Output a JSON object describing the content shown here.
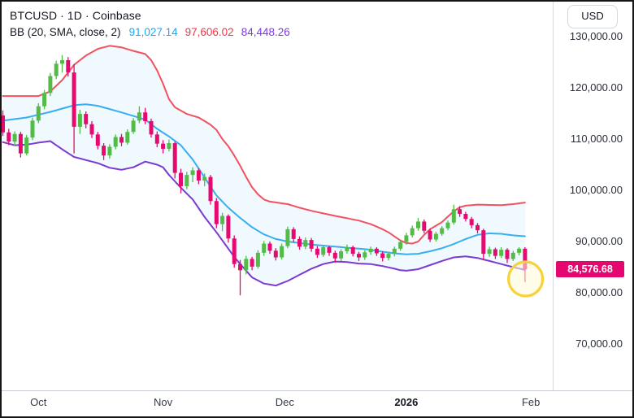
{
  "header": {
    "symbol_line": "BTCUSD · 1D · Coinbase",
    "indicator_label": "BB (20, SMA, close, 2)",
    "bb_basis": "91,027.14",
    "bb_upper": "97,606.02",
    "bb_lower": "84,448.26"
  },
  "axis": {
    "currency_button": "USD",
    "price_tag": "84,576.68"
  },
  "colors": {
    "candle_up": "#53bc47",
    "candle_down": "#e60a70",
    "band_upper": "#f2515f",
    "band_basis": "#38aef2",
    "band_lower": "#7c3ad2",
    "band_fill": "rgba(56,174,242,0.08)",
    "price_tag_bg": "#e5076f",
    "annotation_stroke": "#f6d33c",
    "annotation_fill": "rgba(255,249,216,0.55)",
    "legend_basis": "#1fa7f5",
    "legend_upper": "#f23645",
    "legend_lower": "#8039e0"
  },
  "chart_data": {
    "type": "candlestick",
    "title": "BTCUSD · 1D · Coinbase",
    "indicator": {
      "name": "BB",
      "length": 20,
      "ma_type": "SMA",
      "source": "close",
      "stddev": 2,
      "basis_value": 91027.14,
      "upper_value": 97606.02,
      "lower_value": 84448.26
    },
    "last_price": 84576.68,
    "ylim_k": [
      66,
      132
    ],
    "grid": false,
    "y_axis_ticks": [
      {
        "value_k": 130,
        "label": "130,000.00"
      },
      {
        "value_k": 120,
        "label": "120,000.00"
      },
      {
        "value_k": 110,
        "label": "110,000.00"
      },
      {
        "value_k": 100,
        "label": "100,000.00"
      },
      {
        "value_k": 90,
        "label": "90,000.00"
      },
      {
        "value_k": 80,
        "label": "80,000.00"
      },
      {
        "value_k": 70,
        "label": "70,000.00"
      }
    ],
    "x_axis_ticks": [
      {
        "label": "Oct",
        "index": 6,
        "year": false
      },
      {
        "label": "Nov",
        "index": 27,
        "year": false
      },
      {
        "label": "Dec",
        "index": 47.5,
        "year": false
      },
      {
        "label": "2026",
        "index": 68,
        "year": true
      },
      {
        "label": "Feb",
        "index": 89,
        "year": false
      }
    ],
    "candles_ohlc_k": [
      [
        114.6,
        115.6,
        110.6,
        111.3
      ],
      [
        111.3,
        112.0,
        108.8,
        109.5
      ],
      [
        109.5,
        111.5,
        108.7,
        111.0
      ],
      [
        111.0,
        111.4,
        106.4,
        107.2
      ],
      [
        107.2,
        110.8,
        106.8,
        110.3
      ],
      [
        110.3,
        114.2,
        109.8,
        113.6
      ],
      [
        113.6,
        117.0,
        113.1,
        116.4
      ],
      [
        116.4,
        119.6,
        115.8,
        119.0
      ],
      [
        119.0,
        122.9,
        118.4,
        122.3
      ],
      [
        122.3,
        125.3,
        121.7,
        124.7
      ],
      [
        124.7,
        126.4,
        123.0,
        125.4
      ],
      [
        125.4,
        126.0,
        122.2,
        123.0
      ],
      [
        123.0,
        124.6,
        107.2,
        112.4
      ],
      [
        112.4,
        115.7,
        111.0,
        114.9
      ],
      [
        114.9,
        115.4,
        112.1,
        112.9
      ],
      [
        112.9,
        113.5,
        110.2,
        110.9
      ],
      [
        110.9,
        111.4,
        108.0,
        108.7
      ],
      [
        108.7,
        109.2,
        105.9,
        106.8
      ],
      [
        106.8,
        109.0,
        106.2,
        108.5
      ],
      [
        108.5,
        110.9,
        108.0,
        110.4
      ],
      [
        110.4,
        111.0,
        108.6,
        109.3
      ],
      [
        109.3,
        111.9,
        108.9,
        111.4
      ],
      [
        111.4,
        114.1,
        111.0,
        113.6
      ],
      [
        113.6,
        116.4,
        113.1,
        115.2
      ],
      [
        115.2,
        116.1,
        112.9,
        113.5
      ],
      [
        113.5,
        114.0,
        110.3,
        110.9
      ],
      [
        110.9,
        111.5,
        108.4,
        109.1
      ],
      [
        109.1,
        109.8,
        107.2,
        108.1
      ],
      [
        108.1,
        109.9,
        107.6,
        109.2
      ],
      [
        109.2,
        109.5,
        102.3,
        103.4
      ],
      [
        103.4,
        104.2,
        99.4,
        100.8
      ],
      [
        100.8,
        103.6,
        100.2,
        103.0
      ],
      [
        103.0,
        104.5,
        101.6,
        103.9
      ],
      [
        103.9,
        104.3,
        101.2,
        101.9
      ],
      [
        101.9,
        103.3,
        100.8,
        102.6
      ],
      [
        102.6,
        103.0,
        97.2,
        97.9
      ],
      [
        97.9,
        98.5,
        92.6,
        93.4
      ],
      [
        93.4,
        95.6,
        92.0,
        95.0
      ],
      [
        95.0,
        95.3,
        89.8,
        90.6
      ],
      [
        90.6,
        91.2,
        84.9,
        85.6
      ],
      [
        85.6,
        86.4,
        79.5,
        84.4
      ],
      [
        84.4,
        87.2,
        83.6,
        86.6
      ],
      [
        86.6,
        87.0,
        84.4,
        85.1
      ],
      [
        85.1,
        88.3,
        84.7,
        87.8
      ],
      [
        87.8,
        90.1,
        87.2,
        89.6
      ],
      [
        89.6,
        90.0,
        87.6,
        88.2
      ],
      [
        88.2,
        88.7,
        86.3,
        86.9
      ],
      [
        86.9,
        89.6,
        86.5,
        89.1
      ],
      [
        89.1,
        92.9,
        88.7,
        92.4
      ],
      [
        92.4,
        92.8,
        89.9,
        90.5
      ],
      [
        90.5,
        91.0,
        88.4,
        89.0
      ],
      [
        89.0,
        90.8,
        88.5,
        90.3
      ],
      [
        90.3,
        90.7,
        88.0,
        88.6
      ],
      [
        88.6,
        89.1,
        86.8,
        87.4
      ],
      [
        87.4,
        89.3,
        87.0,
        88.9
      ],
      [
        88.9,
        89.2,
        87.2,
        87.8
      ],
      [
        87.8,
        88.2,
        85.9,
        86.7
      ],
      [
        86.7,
        88.5,
        86.2,
        88.1
      ],
      [
        88.1,
        89.4,
        87.6,
        88.9
      ],
      [
        88.9,
        89.2,
        87.1,
        87.6
      ],
      [
        87.6,
        88.0,
        86.2,
        86.9
      ],
      [
        86.9,
        88.3,
        86.4,
        87.9
      ],
      [
        87.9,
        89.0,
        87.4,
        88.6
      ],
      [
        88.6,
        88.9,
        87.2,
        87.7
      ],
      [
        87.7,
        88.1,
        86.1,
        86.8
      ],
      [
        86.8,
        88.0,
        86.3,
        87.6
      ],
      [
        87.6,
        89.0,
        87.1,
        88.6
      ],
      [
        88.6,
        90.3,
        88.2,
        89.9
      ],
      [
        89.9,
        91.7,
        89.4,
        91.2
      ],
      [
        91.2,
        93.1,
        90.8,
        92.6
      ],
      [
        92.6,
        94.6,
        92.1,
        93.9
      ],
      [
        93.9,
        94.3,
        91.6,
        92.1
      ],
      [
        92.1,
        92.5,
        89.9,
        90.4
      ],
      [
        90.4,
        91.9,
        90.0,
        91.5
      ],
      [
        91.5,
        93.0,
        91.1,
        92.6
      ],
      [
        92.6,
        94.1,
        92.2,
        93.7
      ],
      [
        93.7,
        97.2,
        93.3,
        96.3
      ],
      [
        96.3,
        96.9,
        94.8,
        95.4
      ],
      [
        95.4,
        95.8,
        93.9,
        94.4
      ],
      [
        94.4,
        94.8,
        92.6,
        93.2
      ],
      [
        93.2,
        93.6,
        91.6,
        92.2
      ],
      [
        92.2,
        92.5,
        86.4,
        87.6
      ],
      [
        87.6,
        89.0,
        87.0,
        88.5
      ],
      [
        88.5,
        88.8,
        86.6,
        87.2
      ],
      [
        87.2,
        88.9,
        86.8,
        88.4
      ],
      [
        88.4,
        88.7,
        85.8,
        86.6
      ],
      [
        86.6,
        88.2,
        86.2,
        87.8
      ],
      [
        87.8,
        88.9,
        87.3,
        88.6
      ],
      [
        88.6,
        88.9,
        82.1,
        84.58
      ]
    ],
    "bollinger_keypoints_k": {
      "upper": [
        [
          0,
          118.4
        ],
        [
          6,
          118.4
        ],
        [
          8,
          119.3
        ],
        [
          10,
          121.5
        ],
        [
          12,
          124.5
        ],
        [
          14,
          126.3
        ],
        [
          16,
          127.6
        ],
        [
          18,
          128.2
        ],
        [
          20,
          127.9
        ],
        [
          22,
          127.2
        ],
        [
          24,
          126.6
        ],
        [
          25,
          125.4
        ],
        [
          26,
          123.4
        ],
        [
          27,
          120.8
        ],
        [
          28,
          117.8
        ],
        [
          29,
          116.2
        ],
        [
          31,
          114.9
        ],
        [
          33,
          114.2
        ],
        [
          35,
          112.8
        ],
        [
          36,
          111.8
        ],
        [
          37,
          110.0
        ],
        [
          38,
          108.6
        ],
        [
          39,
          106.8
        ],
        [
          40,
          104.8
        ],
        [
          41,
          102.6
        ],
        [
          42,
          100.6
        ],
        [
          43,
          99.2
        ],
        [
          44,
          98.2
        ],
        [
          45,
          97.8
        ],
        [
          48,
          97.3
        ],
        [
          50,
          96.6
        ],
        [
          52,
          96.0
        ],
        [
          56,
          95.0
        ],
        [
          60,
          94.1
        ],
        [
          62,
          93.4
        ],
        [
          64,
          92.4
        ],
        [
          65,
          91.8
        ],
        [
          66,
          91.0
        ],
        [
          67,
          90.2
        ],
        [
          68,
          89.7
        ],
        [
          69,
          89.6
        ],
        [
          70,
          90.0
        ],
        [
          71,
          91.3
        ],
        [
          72,
          92.4
        ],
        [
          74,
          93.8
        ],
        [
          76,
          95.9
        ],
        [
          77,
          96.7
        ],
        [
          78,
          97.0
        ],
        [
          80,
          97.2
        ],
        [
          84,
          97.1
        ],
        [
          86,
          97.3
        ],
        [
          88,
          97.61
        ]
      ],
      "basis": [
        [
          0,
          113.6
        ],
        [
          4,
          114.2
        ],
        [
          8,
          115.3
        ],
        [
          12,
          116.6
        ],
        [
          14,
          116.8
        ],
        [
          16,
          116.5
        ],
        [
          20,
          115.2
        ],
        [
          24,
          113.8
        ],
        [
          26,
          112.0
        ],
        [
          28,
          110.5
        ],
        [
          30,
          108.8
        ],
        [
          32,
          106.0
        ],
        [
          34,
          102.5
        ],
        [
          36,
          99.0
        ],
        [
          38,
          96.6
        ],
        [
          40,
          94.6
        ],
        [
          42,
          92.8
        ],
        [
          44,
          91.4
        ],
        [
          46,
          90.5
        ],
        [
          48,
          90.0
        ],
        [
          50,
          89.7
        ],
        [
          52,
          89.4
        ],
        [
          54,
          89.2
        ],
        [
          56,
          89.0
        ],
        [
          58,
          88.8
        ],
        [
          60,
          88.6
        ],
        [
          62,
          88.4
        ],
        [
          64,
          88.0
        ],
        [
          66,
          87.7
        ],
        [
          68,
          87.5
        ],
        [
          70,
          87.6
        ],
        [
          72,
          88.1
        ],
        [
          74,
          88.7
        ],
        [
          76,
          89.5
        ],
        [
          78,
          90.5
        ],
        [
          80,
          91.3
        ],
        [
          82,
          91.6
        ],
        [
          84,
          91.5
        ],
        [
          86,
          91.2
        ],
        [
          88,
          91.03
        ]
      ],
      "lower": [
        [
          0,
          109.4
        ],
        [
          2,
          108.8
        ],
        [
          4,
          108.9
        ],
        [
          6,
          109.3
        ],
        [
          8,
          109.6
        ],
        [
          10,
          108.0
        ],
        [
          12,
          106.5
        ],
        [
          14,
          105.9
        ],
        [
          16,
          105.3
        ],
        [
          18,
          104.4
        ],
        [
          20,
          104.0
        ],
        [
          22,
          104.5
        ],
        [
          24,
          105.6
        ],
        [
          26,
          105.0
        ],
        [
          27,
          104.5
        ],
        [
          28,
          103.0
        ],
        [
          30,
          100.5
        ],
        [
          32,
          98.2
        ],
        [
          34,
          94.8
        ],
        [
          36,
          91.8
        ],
        [
          37,
          90.2
        ],
        [
          38,
          88.6
        ],
        [
          39,
          87.0
        ],
        [
          40,
          85.6
        ],
        [
          42,
          83.0
        ],
        [
          44,
          81.8
        ],
        [
          46,
          81.4
        ],
        [
          48,
          82.3
        ],
        [
          50,
          83.5
        ],
        [
          52,
          84.7
        ],
        [
          54,
          85.6
        ],
        [
          56,
          86.1
        ],
        [
          58,
          86.0
        ],
        [
          60,
          85.7
        ],
        [
          62,
          85.6
        ],
        [
          64,
          85.2
        ],
        [
          66,
          84.7
        ],
        [
          67,
          84.4
        ],
        [
          68,
          84.3
        ],
        [
          70,
          84.6
        ],
        [
          72,
          85.4
        ],
        [
          74,
          86.2
        ],
        [
          76,
          86.9
        ],
        [
          78,
          87.1
        ],
        [
          80,
          86.8
        ],
        [
          82,
          86.2
        ],
        [
          84,
          85.6
        ],
        [
          86,
          85.0
        ],
        [
          88,
          84.45
        ]
      ]
    },
    "annotation_circle": {
      "center_index": 88.1,
      "center_price_k": 82.7,
      "radius_px": 21
    }
  }
}
